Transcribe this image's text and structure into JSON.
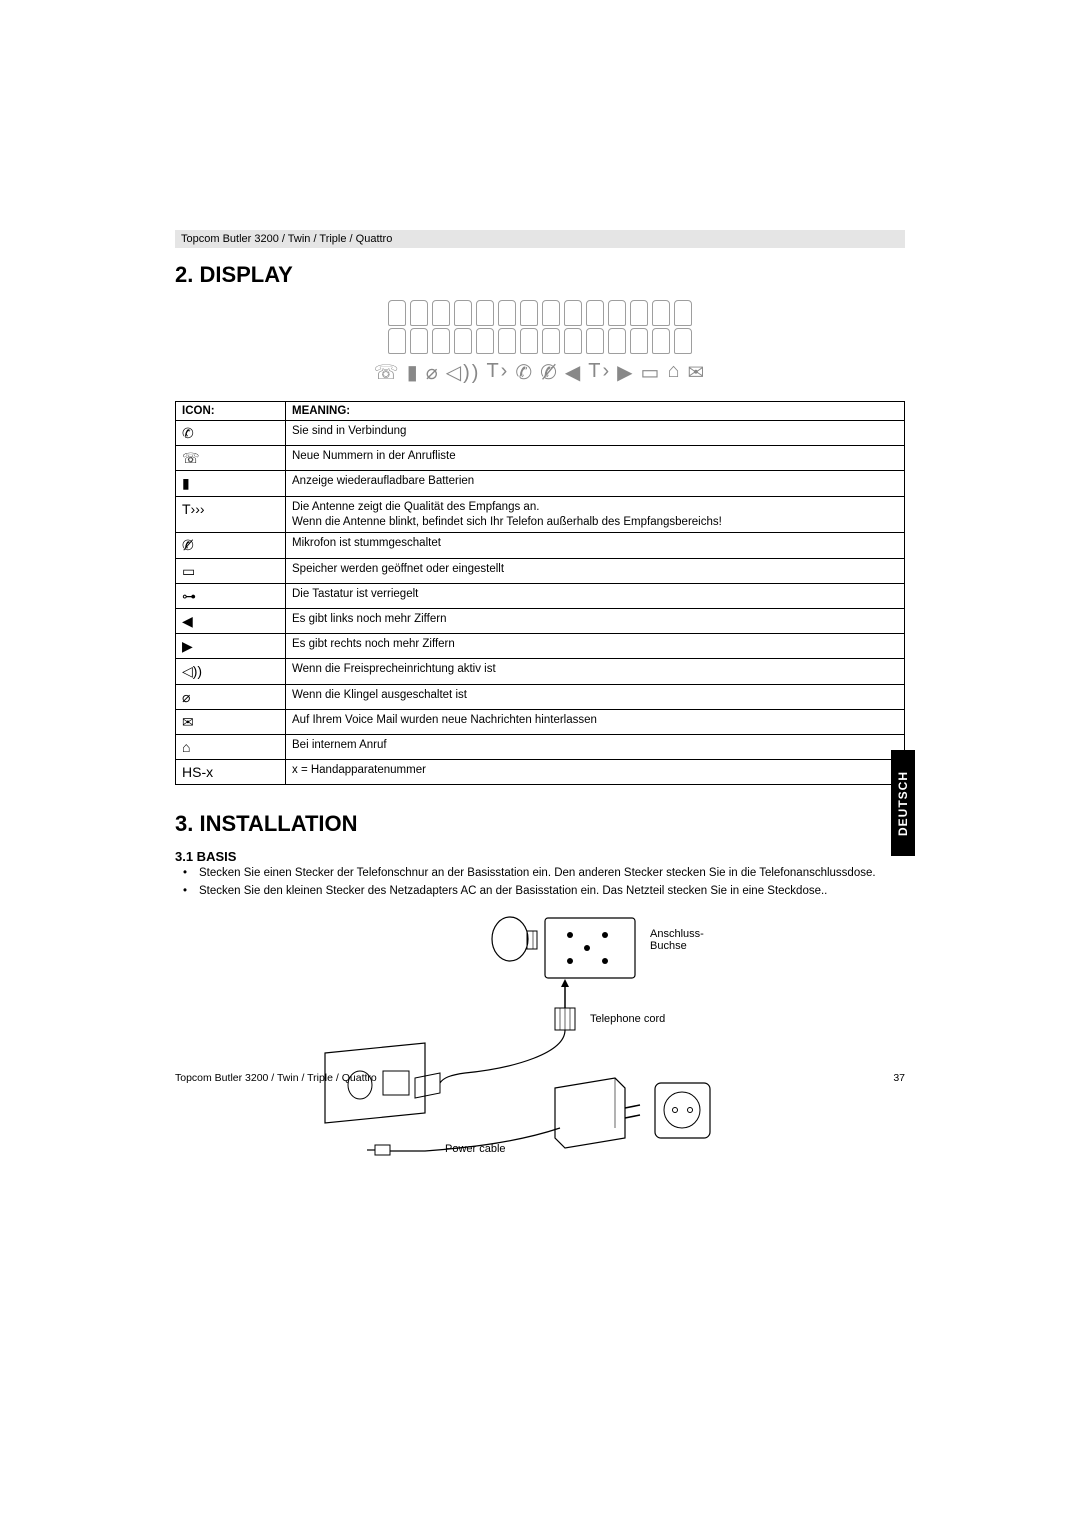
{
  "header": {
    "product_line": "Topcom Butler 3200 / Twin / Triple / Quattro"
  },
  "section_display": {
    "heading": "2. DISPLAY",
    "table": {
      "col_icon": "ICON:",
      "col_meaning": "MEANING:",
      "rows": [
        {
          "icon": "✆",
          "meaning": "Sie sind in Verbindung"
        },
        {
          "icon": "☏",
          "meaning": "Neue Nummern in der Anrufliste"
        },
        {
          "icon": "▮",
          "meaning": "Anzeige wiederaufladbare Batterien"
        },
        {
          "icon": "T›››",
          "meaning": "Die Antenne zeigt die Qualität des Empfangs an.\nWenn die Antenne blinkt, befindet sich Ihr Telefon außerhalb des Empfangsbereichs!"
        },
        {
          "icon": "✆̸",
          "meaning": "Mikrofon ist stummgeschaltet"
        },
        {
          "icon": "▭",
          "meaning": "Speicher werden geöffnet oder eingestellt"
        },
        {
          "icon": "⊶",
          "meaning": "Die Tastatur ist verriegelt"
        },
        {
          "icon": "◀",
          "meaning": "Es gibt links noch mehr Ziffern"
        },
        {
          "icon": "▶",
          "meaning": "Es gibt rechts noch mehr Ziffern"
        },
        {
          "icon": "◁))",
          "meaning": "Wenn die Freisprecheinrichtung aktiv ist"
        },
        {
          "icon": "⌀",
          "meaning": "Wenn die Klingel ausgeschaltet ist"
        },
        {
          "icon": "✉",
          "meaning": "Auf Ihrem Voice Mail wurden neue Nachrichten hinterlassen"
        },
        {
          "icon": "⌂",
          "meaning": "Bei internem Anruf"
        },
        {
          "icon": "HS-x",
          "meaning": "x = Handapparatenummer"
        }
      ]
    }
  },
  "section_install": {
    "heading": "3. INSTALLATION",
    "sub_heading": "3.1 BASIS",
    "bullets": [
      "Stecken Sie einen Stecker der Telefonschnur an der Basisstation ein. Den anderen Stecker stecken Sie in die Telefonanschlussdose.",
      "Stecken Sie den kleinen Stecker des Netzadapters AC an der Basisstation ein. Das Netzteil stecken Sie in eine Steckdose.."
    ],
    "diagram_labels": {
      "socket": "Anschluss-\nBuchse",
      "tel_cord": "Telephone cord",
      "power_cable": "Power cable"
    }
  },
  "footer": {
    "product_line": "Topcom Butler 3200 / Twin / Triple / Quattro",
    "page_no": "37"
  },
  "lang_tab": "DEUTSCH",
  "style": {
    "bg": "#ffffff",
    "text": "#000000",
    "header_bg": "#e5e5e5",
    "tab_bg": "#000000",
    "tab_fg": "#ffffff",
    "border": "#000000",
    "seg_border": "#9e9e9e",
    "icon_gray": "#888888",
    "h1_size_pt": 16,
    "body_size_pt": 8.5
  }
}
